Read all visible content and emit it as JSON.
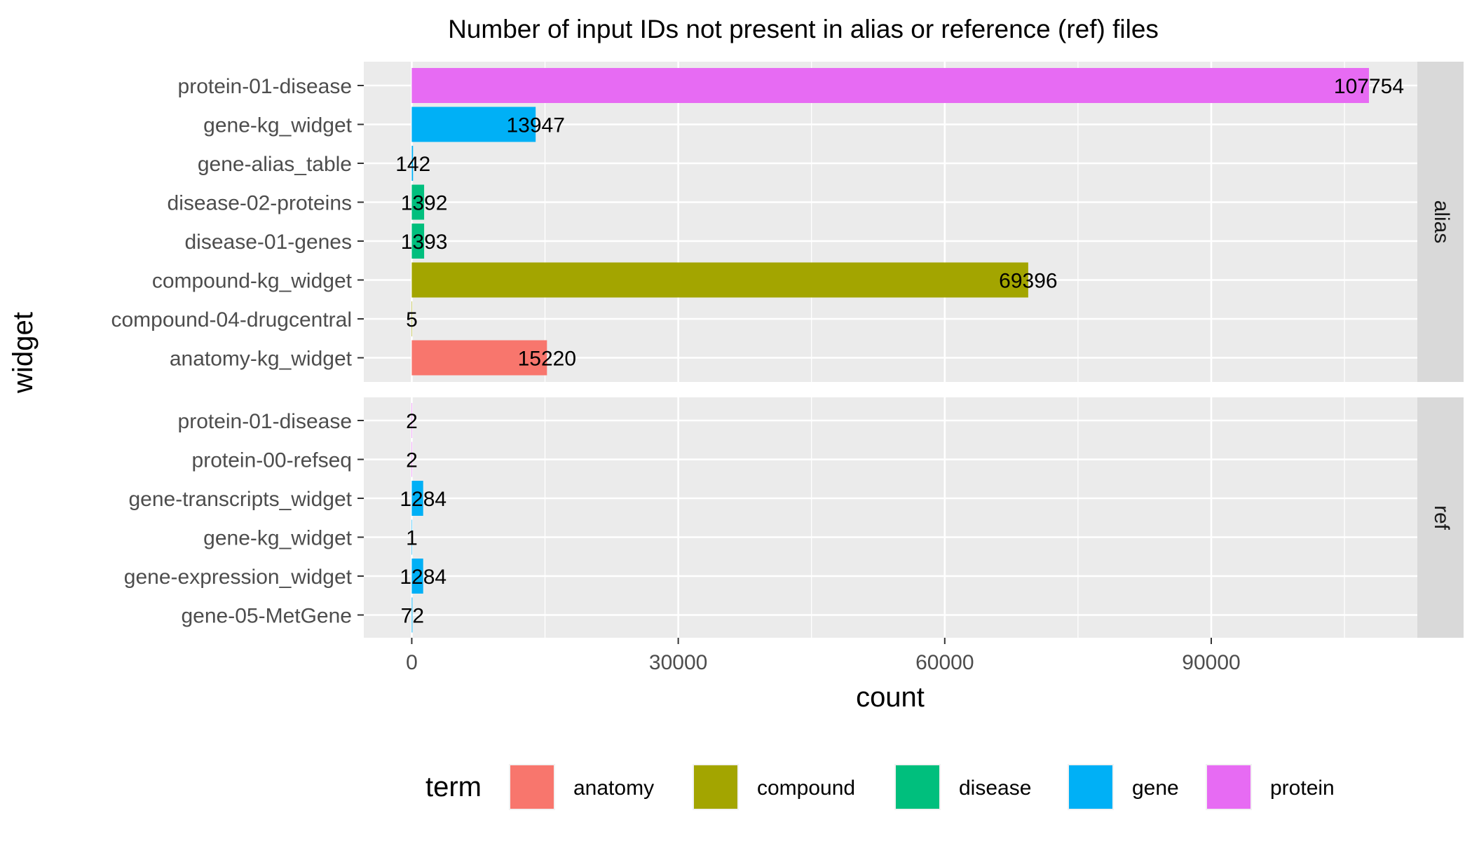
{
  "chart_data": {
    "type": "bar",
    "orientation": "horizontal",
    "title": "Number of input IDs not present in alias or reference (ref) files",
    "xlabel": "count",
    "ylabel": "widget",
    "xlim": [
      -5400,
      113200
    ],
    "xticks": [
      0,
      30000,
      60000,
      90000
    ],
    "grid": true,
    "legend": {
      "title": "term",
      "position": "bottom",
      "items": [
        {
          "name": "anatomy",
          "color": "#F8766D"
        },
        {
          "name": "compound",
          "color": "#A3A500"
        },
        {
          "name": "disease",
          "color": "#00BF7D"
        },
        {
          "name": "gene",
          "color": "#00B0F6"
        },
        {
          "name": "protein",
          "color": "#E76BF3"
        }
      ]
    },
    "panels": [
      {
        "label": "alias",
        "bars": [
          {
            "widget": "protein-01-disease",
            "term": "protein",
            "value": 107754,
            "label": "107754"
          },
          {
            "widget": "gene-kg_widget",
            "term": "gene",
            "value": 13947,
            "label": "13947"
          },
          {
            "widget": "gene-alias_table",
            "term": "gene",
            "value": 142,
            "label": "142"
          },
          {
            "widget": "disease-02-proteins",
            "term": "disease",
            "value": 1392,
            "label": "1392"
          },
          {
            "widget": "disease-01-genes",
            "term": "disease",
            "value": 1393,
            "label": "1393"
          },
          {
            "widget": "compound-kg_widget",
            "term": "compound",
            "value": 69396,
            "label": "69396"
          },
          {
            "widget": "compound-04-drugcentral",
            "term": "compound",
            "value": 5,
            "label": "5"
          },
          {
            "widget": "anatomy-kg_widget",
            "term": "anatomy",
            "value": 15220,
            "label": "15220"
          }
        ]
      },
      {
        "label": "ref",
        "bars": [
          {
            "widget": "protein-01-disease",
            "term": "protein",
            "value": 2,
            "label": "2"
          },
          {
            "widget": "protein-00-refseq",
            "term": "protein",
            "value": 2,
            "label": "2"
          },
          {
            "widget": "gene-transcripts_widget",
            "term": "gene",
            "value": 1284,
            "label": "1284"
          },
          {
            "widget": "gene-kg_widget",
            "term": "gene",
            "value": 1,
            "label": "1"
          },
          {
            "widget": "gene-expression_widget",
            "term": "gene",
            "value": 1284,
            "label": "1284"
          },
          {
            "widget": "gene-05-MetGene",
            "term": "gene",
            "value": 72,
            "label": "72"
          }
        ]
      }
    ]
  }
}
